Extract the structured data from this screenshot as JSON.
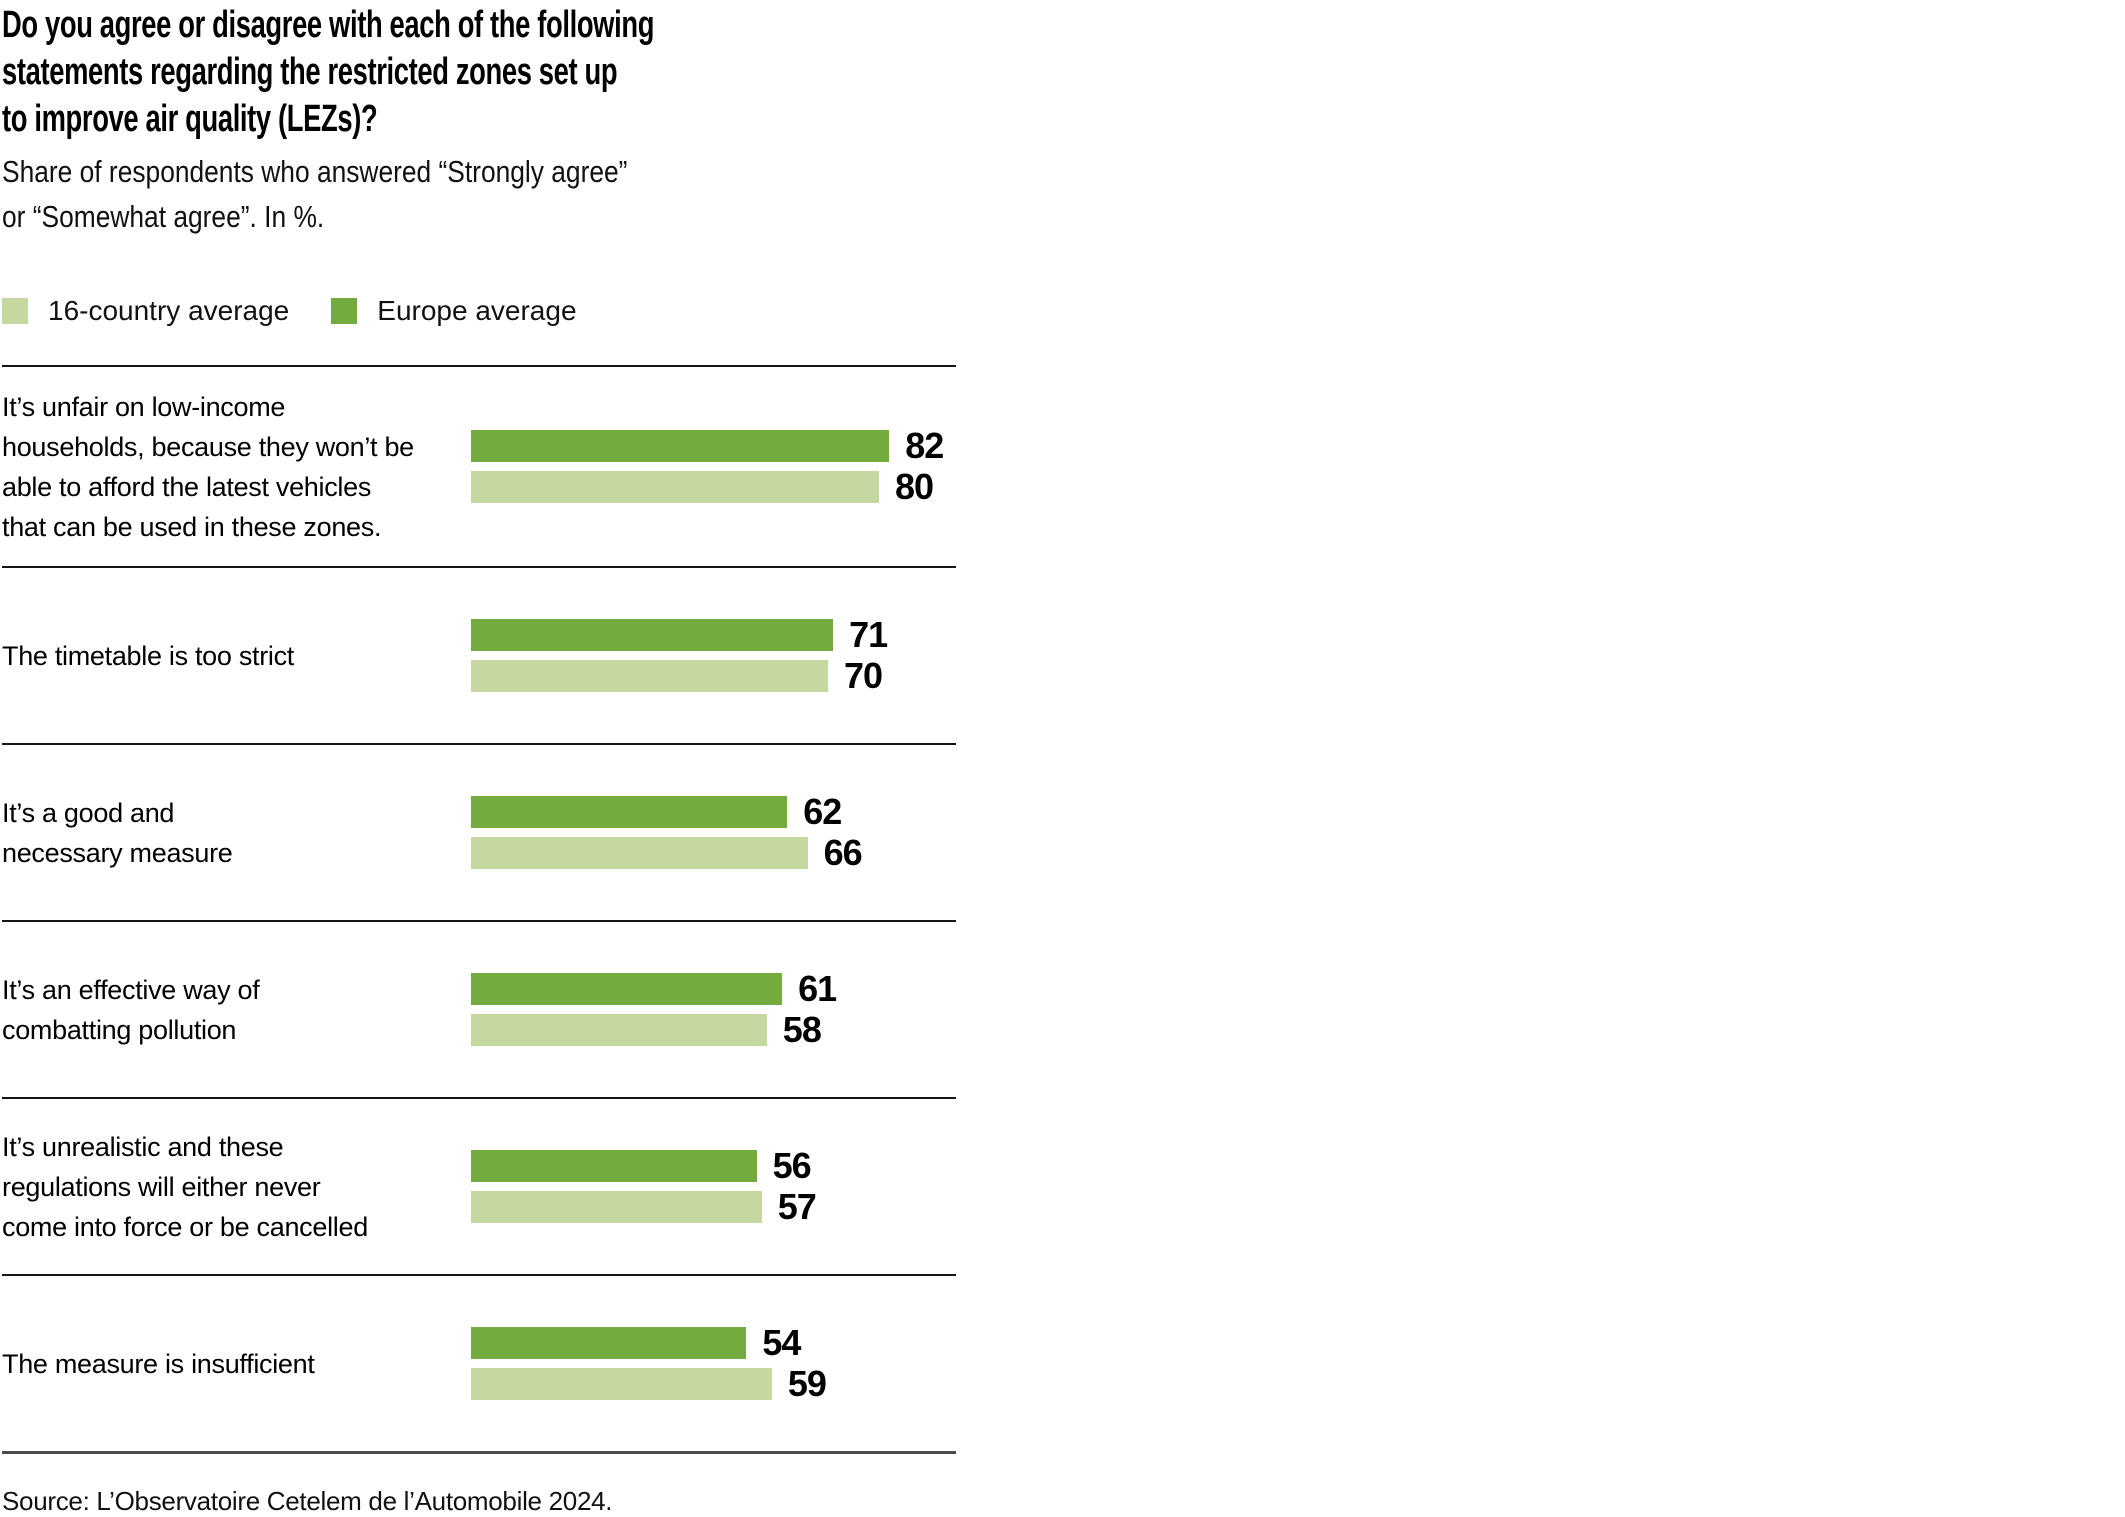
{
  "header": {
    "title": "Do you agree or disagree with each of the following\nstatements regarding the restricted zones set up\nto improve air quality (LEZs)?",
    "subtitle": "Share of respondents who answered “Strongly agree”\nor “Somewhat agree”. In %."
  },
  "legend": {
    "items": [
      {
        "label": "16-country average",
        "color": "#c4d89f"
      },
      {
        "label": "Europe average",
        "color": "#74ab3f"
      }
    ]
  },
  "chart_data": {
    "type": "bar",
    "orientation": "horizontal",
    "value_unit": "%",
    "axis_max": 100,
    "grid": false,
    "legend_position": "top",
    "title": "Do you agree or disagree with each of the following statements regarding the restricted zones set up to improve air quality (LEZs)?",
    "subtitle": "Share of respondents who answered “Strongly agree” or “Somewhat agree”. In %.",
    "series": [
      {
        "key": "europe",
        "name": "Europe average",
        "color": "#74ab3f"
      },
      {
        "key": "country16",
        "name": "16-country average",
        "color": "#c4d89f"
      }
    ],
    "rows": [
      {
        "label": "It’s unfair on low-income households, because they won’t be able to afford the latest vehicles that can be used in these zones.",
        "label_lines": [
          "It’s unfair on low-income",
          "households, because they won’t be",
          "able to afford the latest vehicles",
          "that can be used in these zones."
        ],
        "values": {
          "europe": 82,
          "country16": 80
        }
      },
      {
        "label": "The timetable is too strict",
        "label_lines": [
          "The timetable is too strict"
        ],
        "values": {
          "europe": 71,
          "country16": 70
        }
      },
      {
        "label": "It’s a good and necessary measure",
        "label_lines": [
          "It’s a good and",
          "necessary measure"
        ],
        "values": {
          "europe": 62,
          "country16": 66
        }
      },
      {
        "label": "It’s an effective way of combatting pollution",
        "label_lines": [
          "It’s an effective way of",
          "combatting pollution"
        ],
        "values": {
          "europe": 61,
          "country16": 58
        }
      },
      {
        "label": "It’s unrealistic and these regulations will either never come into force or be cancelled",
        "label_lines": [
          "It’s unrealistic and these",
          "regulations will either never",
          "come into force or be cancelled"
        ],
        "values": {
          "europe": 56,
          "country16": 57
        }
      },
      {
        "label": "The measure is insufficient",
        "label_lines": [
          "The measure is insufficient"
        ],
        "values": {
          "europe": 54,
          "country16": 59
        }
      }
    ]
  },
  "footer": {
    "source": "Source: L’Observatoire Cetelem de l’Automobile 2024."
  }
}
